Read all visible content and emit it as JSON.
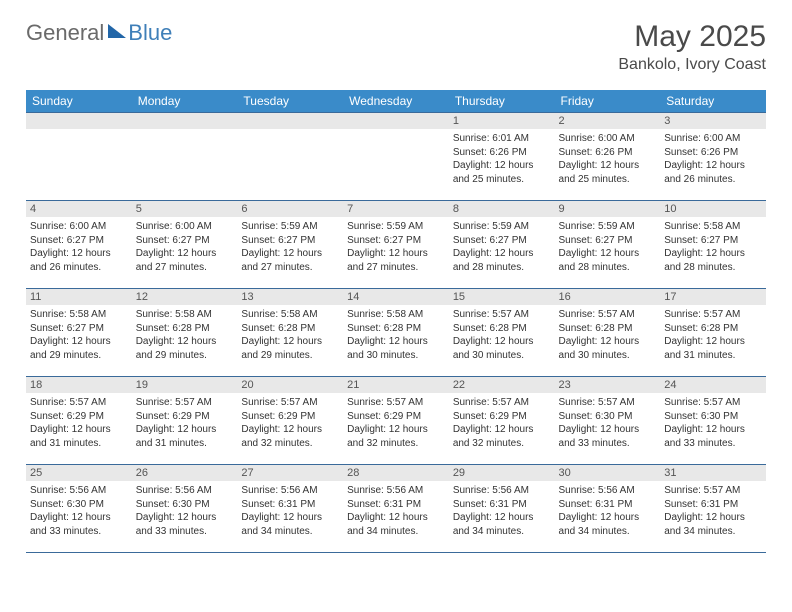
{
  "logo": {
    "text_general": "General",
    "text_blue": "Blue"
  },
  "header": {
    "month_title": "May 2025",
    "location": "Bankolo, Ivory Coast"
  },
  "weekdays": [
    "Sunday",
    "Monday",
    "Tuesday",
    "Wednesday",
    "Thursday",
    "Friday",
    "Saturday"
  ],
  "colors": {
    "header_bg": "#3a8bc9",
    "border": "#3a6a9a",
    "daynum_bg": "#e8e8e8",
    "logo_gray": "#6a6a6a",
    "logo_blue": "#3f7fb8",
    "logo_triangle": "#2266a8"
  },
  "weeks": [
    [
      {
        "empty": true
      },
      {
        "empty": true
      },
      {
        "empty": true
      },
      {
        "empty": true
      },
      {
        "num": "1",
        "sunrise": "Sunrise: 6:01 AM",
        "sunset": "Sunset: 6:26 PM",
        "daylight": "Daylight: 12 hours and 25 minutes."
      },
      {
        "num": "2",
        "sunrise": "Sunrise: 6:00 AM",
        "sunset": "Sunset: 6:26 PM",
        "daylight": "Daylight: 12 hours and 25 minutes."
      },
      {
        "num": "3",
        "sunrise": "Sunrise: 6:00 AM",
        "sunset": "Sunset: 6:26 PM",
        "daylight": "Daylight: 12 hours and 26 minutes."
      }
    ],
    [
      {
        "num": "4",
        "sunrise": "Sunrise: 6:00 AM",
        "sunset": "Sunset: 6:27 PM",
        "daylight": "Daylight: 12 hours and 26 minutes."
      },
      {
        "num": "5",
        "sunrise": "Sunrise: 6:00 AM",
        "sunset": "Sunset: 6:27 PM",
        "daylight": "Daylight: 12 hours and 27 minutes."
      },
      {
        "num": "6",
        "sunrise": "Sunrise: 5:59 AM",
        "sunset": "Sunset: 6:27 PM",
        "daylight": "Daylight: 12 hours and 27 minutes."
      },
      {
        "num": "7",
        "sunrise": "Sunrise: 5:59 AM",
        "sunset": "Sunset: 6:27 PM",
        "daylight": "Daylight: 12 hours and 27 minutes."
      },
      {
        "num": "8",
        "sunrise": "Sunrise: 5:59 AM",
        "sunset": "Sunset: 6:27 PM",
        "daylight": "Daylight: 12 hours and 28 minutes."
      },
      {
        "num": "9",
        "sunrise": "Sunrise: 5:59 AM",
        "sunset": "Sunset: 6:27 PM",
        "daylight": "Daylight: 12 hours and 28 minutes."
      },
      {
        "num": "10",
        "sunrise": "Sunrise: 5:58 AM",
        "sunset": "Sunset: 6:27 PM",
        "daylight": "Daylight: 12 hours and 28 minutes."
      }
    ],
    [
      {
        "num": "11",
        "sunrise": "Sunrise: 5:58 AM",
        "sunset": "Sunset: 6:27 PM",
        "daylight": "Daylight: 12 hours and 29 minutes."
      },
      {
        "num": "12",
        "sunrise": "Sunrise: 5:58 AM",
        "sunset": "Sunset: 6:28 PM",
        "daylight": "Daylight: 12 hours and 29 minutes."
      },
      {
        "num": "13",
        "sunrise": "Sunrise: 5:58 AM",
        "sunset": "Sunset: 6:28 PM",
        "daylight": "Daylight: 12 hours and 29 minutes."
      },
      {
        "num": "14",
        "sunrise": "Sunrise: 5:58 AM",
        "sunset": "Sunset: 6:28 PM",
        "daylight": "Daylight: 12 hours and 30 minutes."
      },
      {
        "num": "15",
        "sunrise": "Sunrise: 5:57 AM",
        "sunset": "Sunset: 6:28 PM",
        "daylight": "Daylight: 12 hours and 30 minutes."
      },
      {
        "num": "16",
        "sunrise": "Sunrise: 5:57 AM",
        "sunset": "Sunset: 6:28 PM",
        "daylight": "Daylight: 12 hours and 30 minutes."
      },
      {
        "num": "17",
        "sunrise": "Sunrise: 5:57 AM",
        "sunset": "Sunset: 6:28 PM",
        "daylight": "Daylight: 12 hours and 31 minutes."
      }
    ],
    [
      {
        "num": "18",
        "sunrise": "Sunrise: 5:57 AM",
        "sunset": "Sunset: 6:29 PM",
        "daylight": "Daylight: 12 hours and 31 minutes."
      },
      {
        "num": "19",
        "sunrise": "Sunrise: 5:57 AM",
        "sunset": "Sunset: 6:29 PM",
        "daylight": "Daylight: 12 hours and 31 minutes."
      },
      {
        "num": "20",
        "sunrise": "Sunrise: 5:57 AM",
        "sunset": "Sunset: 6:29 PM",
        "daylight": "Daylight: 12 hours and 32 minutes."
      },
      {
        "num": "21",
        "sunrise": "Sunrise: 5:57 AM",
        "sunset": "Sunset: 6:29 PM",
        "daylight": "Daylight: 12 hours and 32 minutes."
      },
      {
        "num": "22",
        "sunrise": "Sunrise: 5:57 AM",
        "sunset": "Sunset: 6:29 PM",
        "daylight": "Daylight: 12 hours and 32 minutes."
      },
      {
        "num": "23",
        "sunrise": "Sunrise: 5:57 AM",
        "sunset": "Sunset: 6:30 PM",
        "daylight": "Daylight: 12 hours and 33 minutes."
      },
      {
        "num": "24",
        "sunrise": "Sunrise: 5:57 AM",
        "sunset": "Sunset: 6:30 PM",
        "daylight": "Daylight: 12 hours and 33 minutes."
      }
    ],
    [
      {
        "num": "25",
        "sunrise": "Sunrise: 5:56 AM",
        "sunset": "Sunset: 6:30 PM",
        "daylight": "Daylight: 12 hours and 33 minutes."
      },
      {
        "num": "26",
        "sunrise": "Sunrise: 5:56 AM",
        "sunset": "Sunset: 6:30 PM",
        "daylight": "Daylight: 12 hours and 33 minutes."
      },
      {
        "num": "27",
        "sunrise": "Sunrise: 5:56 AM",
        "sunset": "Sunset: 6:31 PM",
        "daylight": "Daylight: 12 hours and 34 minutes."
      },
      {
        "num": "28",
        "sunrise": "Sunrise: 5:56 AM",
        "sunset": "Sunset: 6:31 PM",
        "daylight": "Daylight: 12 hours and 34 minutes."
      },
      {
        "num": "29",
        "sunrise": "Sunrise: 5:56 AM",
        "sunset": "Sunset: 6:31 PM",
        "daylight": "Daylight: 12 hours and 34 minutes."
      },
      {
        "num": "30",
        "sunrise": "Sunrise: 5:56 AM",
        "sunset": "Sunset: 6:31 PM",
        "daylight": "Daylight: 12 hours and 34 minutes."
      },
      {
        "num": "31",
        "sunrise": "Sunrise: 5:57 AM",
        "sunset": "Sunset: 6:31 PM",
        "daylight": "Daylight: 12 hours and 34 minutes."
      }
    ]
  ]
}
